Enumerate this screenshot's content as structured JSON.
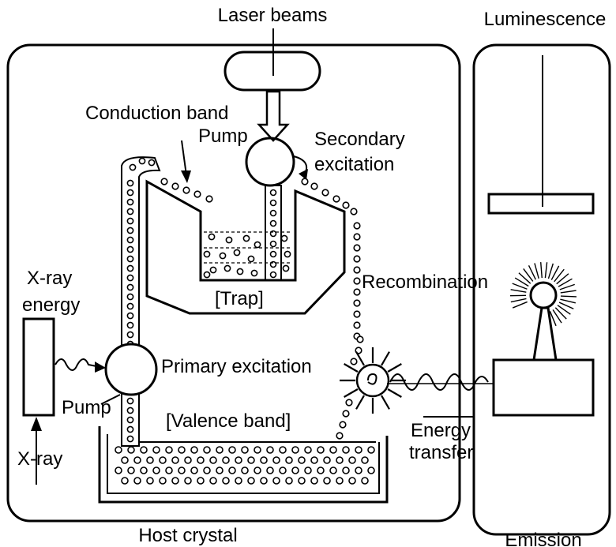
{
  "labels": {
    "laser_beams": "Laser beams",
    "luminescence": "Luminescence",
    "conduction_band": "Conduction band",
    "pump_top": "Pump",
    "secondary_excitation_1": "Secondary",
    "secondary_excitation_2": "excitation",
    "recombination": "Recombination",
    "trap": "[Trap]",
    "xray_energy_1": "X-ray",
    "xray_energy_2": "energy",
    "primary_excitation": "Primary excitation",
    "pump_bottom": "Pump",
    "valence_band": "[Valence band]",
    "energy_transfer_1": "Energy",
    "energy_transfer_2": "transfer",
    "xray": "X-ray",
    "host_crystal": "Host crystal",
    "emission": "Emission"
  },
  "colors": {
    "ink": "#000000",
    "background": "#ffffff"
  }
}
